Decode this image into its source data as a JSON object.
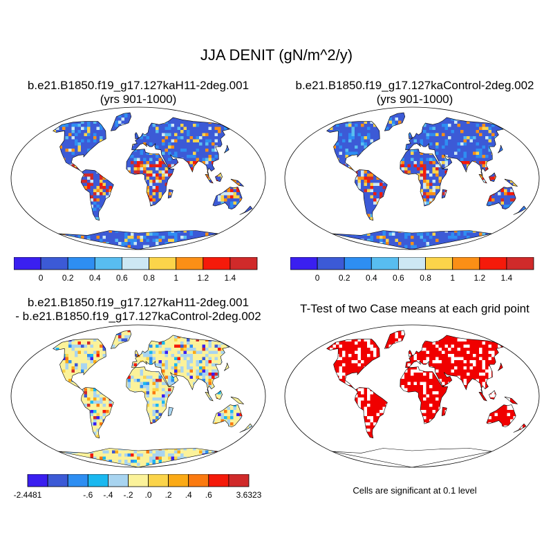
{
  "title": "JJA DENIT (gN/m^2/y)",
  "panels": [
    {
      "title_line1": "b.e21.B1850.f19_g17.127kaH11-2deg.001",
      "title_line2": "(yrs 901-1000)",
      "kind": "field",
      "hotspot": "tropics-south-america"
    },
    {
      "title_line1": "b.e21.B1850.f19_g17.127kaControl-2deg.002",
      "title_line2": "(yrs 901-1000)",
      "kind": "field",
      "hotspot": "amazon"
    },
    {
      "title_line1": "b.e21.B1850.f19_g17.127kaH11-2deg.001",
      "title_line2": "- b.e21.B1850.f19_g17.127kaControl-2deg.002",
      "kind": "difference"
    },
    {
      "title_line1": "T-Test of two Case means at each grid point",
      "title_line2": "",
      "kind": "ttest",
      "note": "Cells are significant at 0.1 level"
    }
  ],
  "colorbar_main": {
    "colors": [
      "#3a1ff0",
      "#3c5ad6",
      "#2e8ef2",
      "#58bdf0",
      "#cde8f4",
      "#fbd44a",
      "#fb8f16",
      "#f51a0a",
      "#d02a2a"
    ],
    "labels": [
      "0",
      "0.2",
      "0.4",
      "0.6",
      "0.8",
      "1",
      "1.2",
      "1.4"
    ]
  },
  "colorbar_diff": {
    "colors": [
      "#3a1ff0",
      "#3c5ad6",
      "#2e8ef2",
      "#1ab8f0",
      "#a8d4f0",
      "#fbf29a",
      "#fbd44a",
      "#fbaa16",
      "#fb7a10",
      "#f51a0a",
      "#d02a2a"
    ],
    "labels": [
      "-2.4481",
      "-.6",
      "-.4",
      "-.2",
      ".0",
      ".2",
      ".4",
      ".6",
      "3.6323"
    ]
  },
  "colors": {
    "land_main": "#3c5ad6",
    "land_diff": "#fbf29a",
    "ttest_red": "#f00000",
    "ocean": "#ffffff",
    "coast": "#000000"
  }
}
